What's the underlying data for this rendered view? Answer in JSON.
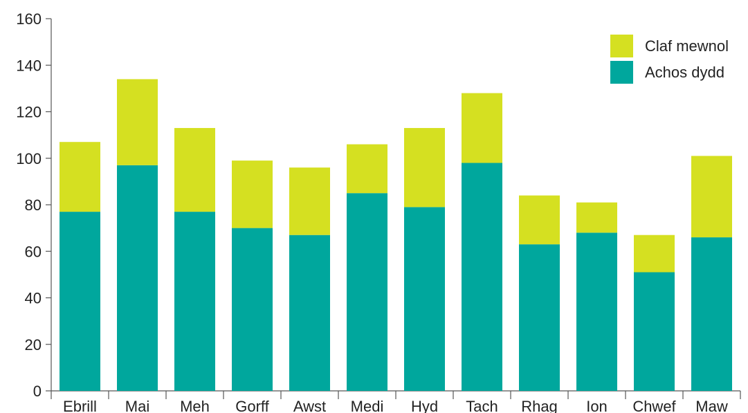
{
  "chart_data": {
    "type": "bar",
    "stacked": true,
    "categories": [
      "Ebrill",
      "Mai",
      "Meh",
      "Gorff",
      "Awst",
      "Medi",
      "Hyd",
      "Tach",
      "Rhag",
      "Ion",
      "Chwef",
      "Maw"
    ],
    "series": [
      {
        "name": "Achos dydd",
        "color": "#00A79D",
        "values": [
          77,
          97,
          77,
          70,
          67,
          85,
          79,
          98,
          63,
          68,
          51,
          66
        ]
      },
      {
        "name": "Claf mewnol",
        "color": "#D5E021",
        "values": [
          30,
          37,
          36,
          29,
          29,
          21,
          34,
          30,
          21,
          13,
          16,
          35
        ]
      }
    ],
    "title": "",
    "xlabel": "",
    "ylabel": "",
    "ylim": [
      0,
      160
    ],
    "yticks": [
      0,
      20,
      40,
      60,
      80,
      100,
      120,
      140,
      160
    ],
    "grid": false,
    "legend": {
      "position": "top-right",
      "order": [
        "Claf mewnol",
        "Achos dydd"
      ]
    }
  }
}
